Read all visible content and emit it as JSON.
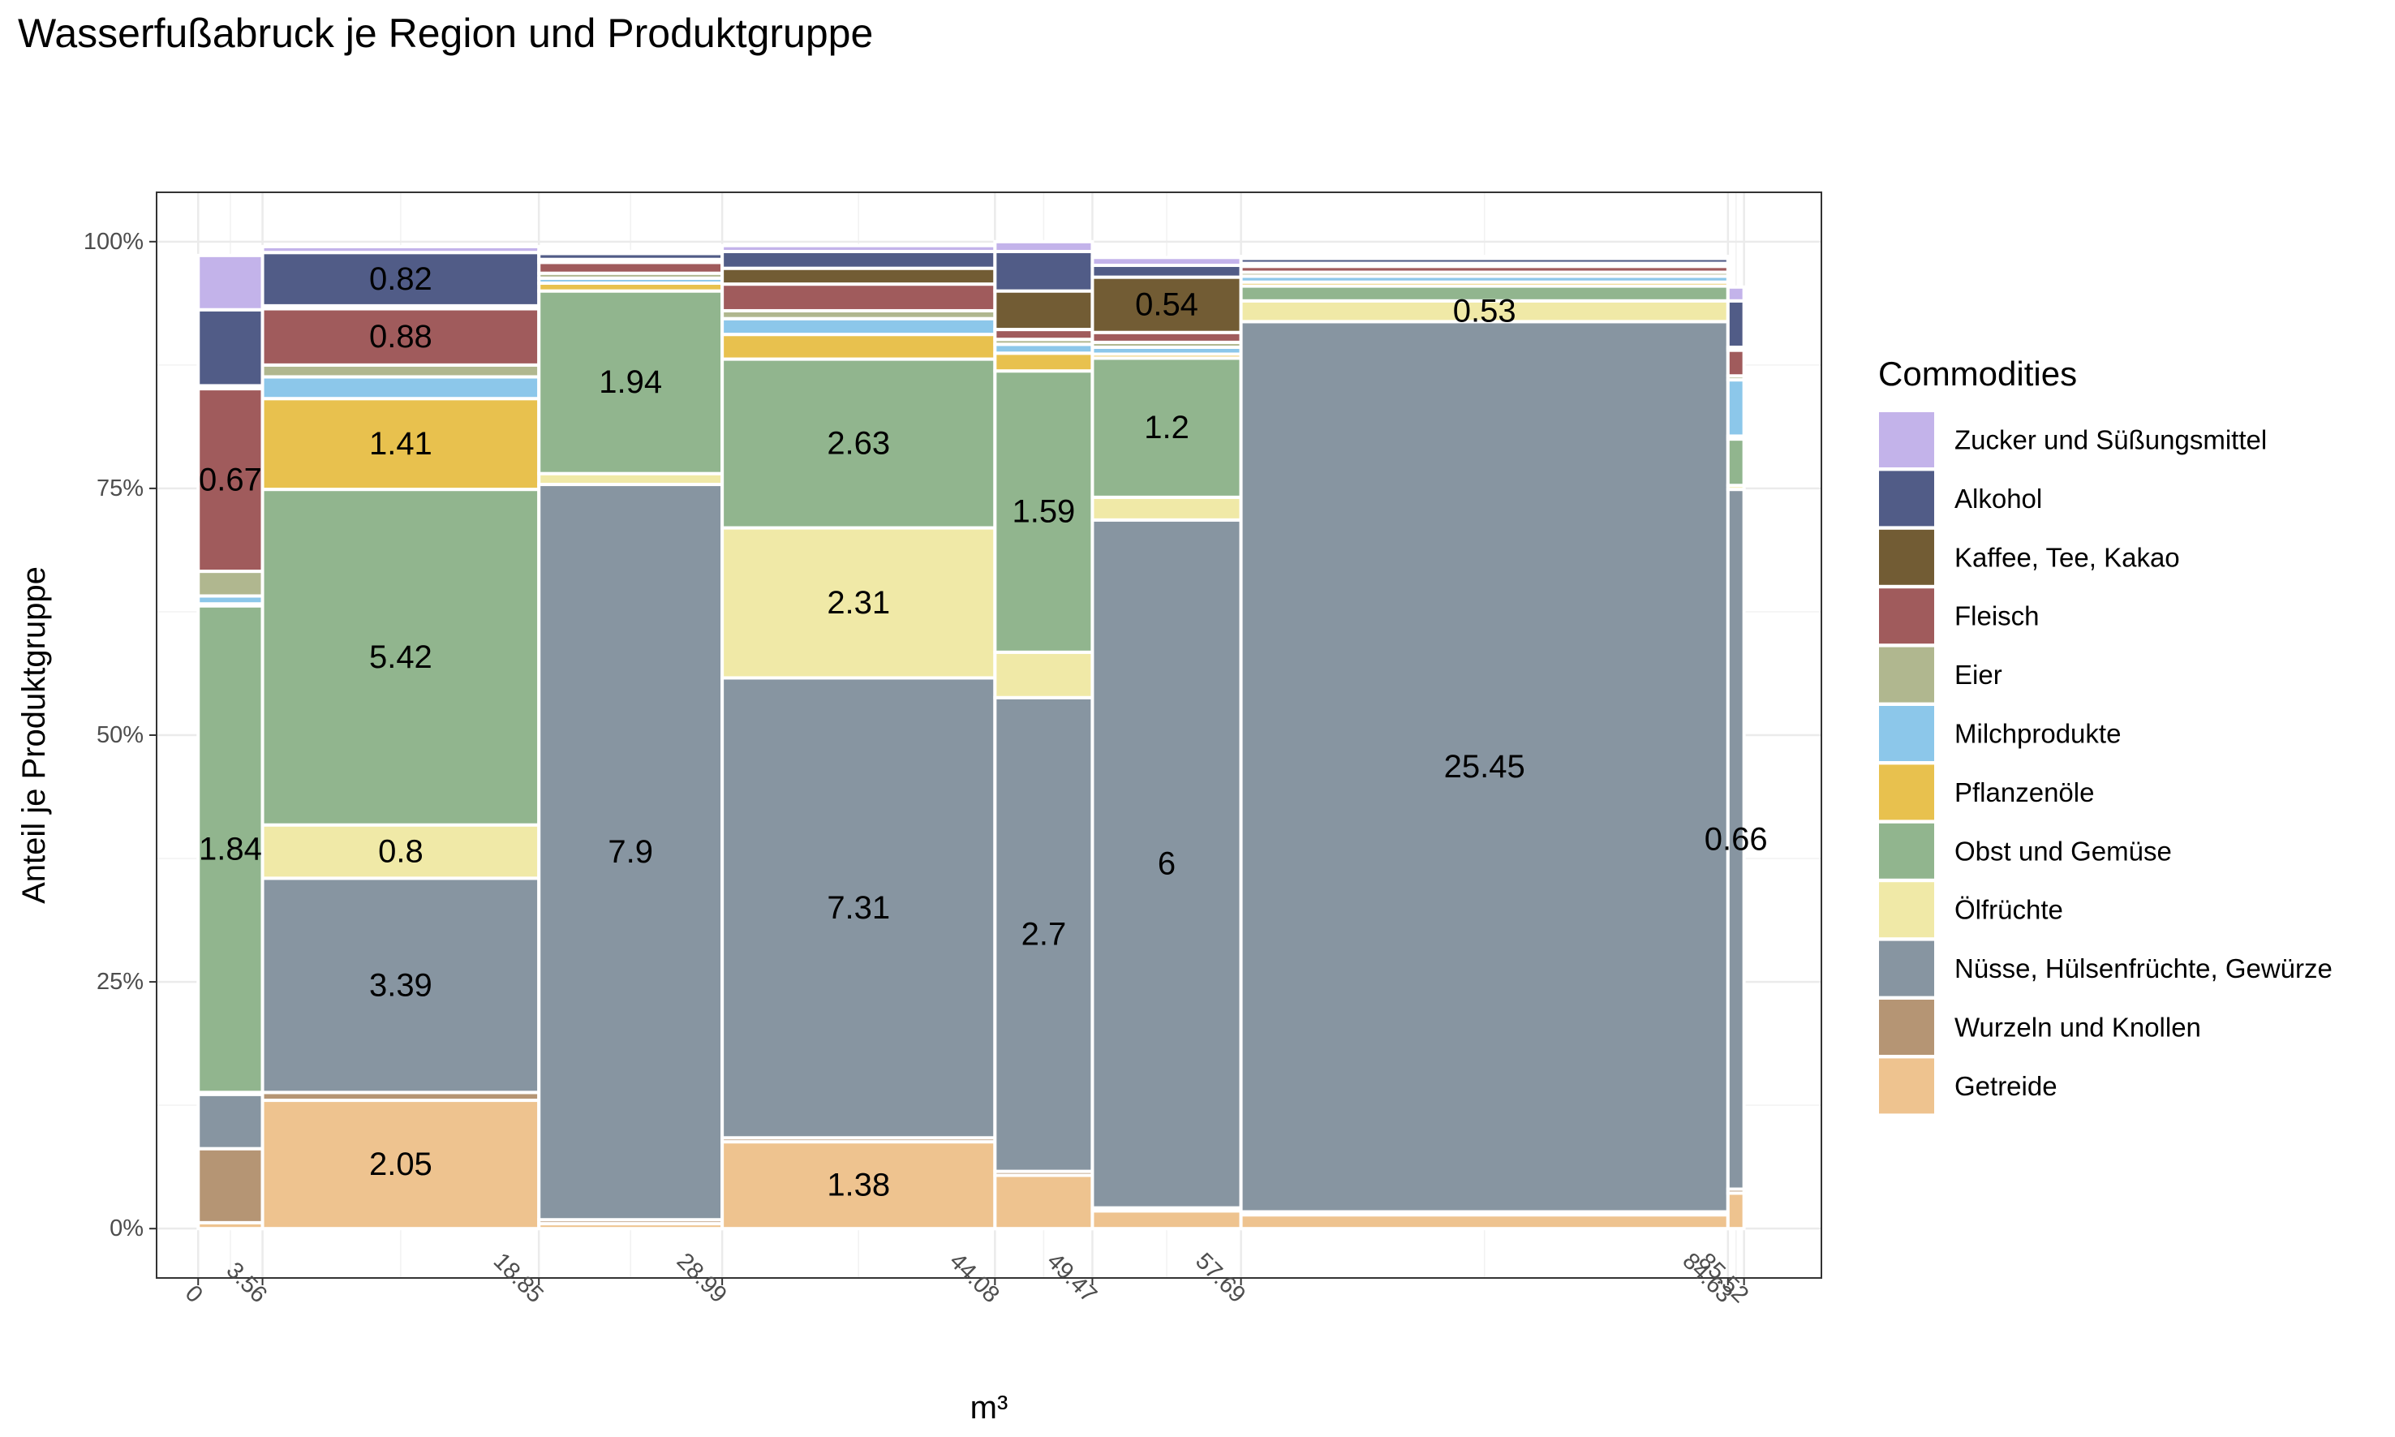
{
  "chart_data": {
    "type": "mosaic",
    "title": "Wasserfußabruck je Region und Produktgruppe",
    "xlabel": "m³",
    "ylabel": "Anteil je Produktgruppe",
    "xlim": [
      -2.3,
      89.8
    ],
    "ylim": [
      -0.05,
      1.05
    ],
    "x_ticks": [
      "0",
      "3.56",
      "18.85",
      "28.99",
      "44.08",
      "49.47",
      "57.69",
      "84.63",
      "85.52"
    ],
    "y_ticks": [
      "0%",
      "25%",
      "50%",
      "75%",
      "100%"
    ],
    "grid": true,
    "legend": {
      "title": "Commodities",
      "position": "right"
    },
    "categories": [
      {
        "name": "Zucker und Süßungsmittel",
        "color": "#c3b3ea"
      },
      {
        "name": "Alkohol",
        "color": "#515c87"
      },
      {
        "name": "Kaffee, Tee, Kakao",
        "color": "#725c34"
      },
      {
        "name": "Fleisch",
        "color": "#a05b5c"
      },
      {
        "name": "Eier",
        "color": "#b0b78f"
      },
      {
        "name": "Milchprodukte",
        "color": "#8cc7ea"
      },
      {
        "name": "Pflanzenöle",
        "color": "#e8c14e"
      },
      {
        "name": "Obst und Gemüse",
        "color": "#91b58e"
      },
      {
        "name": "Ölfrüchte",
        "color": "#f0e9a7"
      },
      {
        "name": "Nüsse, Hülsenfrüchte, Gewürze",
        "color": "#8795a1"
      },
      {
        "name": "Wurzeln und Knollen",
        "color": "#b59574"
      },
      {
        "name": "Getreide",
        "color": "#eec38f"
      }
    ],
    "columns": [
      {
        "x0": 0,
        "x1": 3.56,
        "shares": [
          0.055,
          0.077,
          0.003,
          0.185,
          0.025,
          0.008,
          0.002,
          0.493,
          0.002,
          0.055,
          0.075,
          0.006
        ],
        "labels": [
          {
            "text": "0.67",
            "category": "Fleisch"
          },
          {
            "text": "1.84",
            "category": "Obst und Gemüse"
          }
        ]
      },
      {
        "x0": 3.56,
        "x1": 18.85,
        "shares": [
          0.006,
          0.054,
          0.003,
          0.057,
          0.012,
          0.022,
          0.092,
          0.34,
          0.054,
          0.217,
          0.008,
          0.13
        ],
        "labels": [
          {
            "text": "0.82",
            "category": "Alkohol"
          },
          {
            "text": "0.88",
            "category": "Fleisch"
          },
          {
            "text": "1.41",
            "category": "Pflanzenöle"
          },
          {
            "text": "5.42",
            "category": "Obst und Gemüse"
          },
          {
            "text": "0.8",
            "category": "Ölfrüchte"
          },
          {
            "text": "3.39",
            "category": "Nüsse, Hülsenfrüchte, Gewürze"
          },
          {
            "text": "2.05",
            "category": "Getreide"
          }
        ]
      },
      {
        "x0": 18.85,
        "x1": 28.99,
        "shares": [
          0.002,
          0.006,
          0.003,
          0.011,
          0.005,
          0.005,
          0.008,
          0.185,
          0.011,
          0.745,
          0.004,
          0.005
        ],
        "labels": [
          {
            "text": "1.94",
            "category": "Obst und Gemüse"
          },
          {
            "text": "7.9",
            "category": "Nüsse, Hülsenfrüchte, Gewürze"
          }
        ]
      },
      {
        "x0": 28.99,
        "x1": 44.08,
        "shares": [
          0.006,
          0.017,
          0.016,
          0.027,
          0.008,
          0.016,
          0.025,
          0.171,
          0.152,
          0.466,
          0.004,
          0.088
        ],
        "labels": [
          {
            "text": "2.63",
            "category": "Obst und Gemüse"
          },
          {
            "text": "2.31",
            "category": "Ölfrüchte"
          },
          {
            "text": "7.31",
            "category": "Nüsse, Hülsenfrüchte, Gewürze"
          },
          {
            "text": "1.38",
            "category": "Getreide"
          }
        ]
      },
      {
        "x0": 44.08,
        "x1": 49.47,
        "shares": [
          0.01,
          0.04,
          0.039,
          0.01,
          0.005,
          0.009,
          0.018,
          0.285,
          0.046,
          0.48,
          0.004,
          0.054
        ],
        "labels": [
          {
            "text": "1.59",
            "category": "Obst und Gemüse"
          },
          {
            "text": "2.7",
            "category": "Nüsse, Hülsenfrüchte, Gewürze"
          }
        ]
      },
      {
        "x0": 49.47,
        "x1": 57.69,
        "shares": [
          0.008,
          0.012,
          0.056,
          0.01,
          0.005,
          0.007,
          0.004,
          0.141,
          0.023,
          0.697,
          0.003,
          0.018
        ],
        "labels": [
          {
            "text": "0.54",
            "category": "Kaffee, Tee, Kakao"
          },
          {
            "text": "1.2",
            "category": "Obst und Gemüse"
          },
          {
            "text": "6",
            "category": "Nüsse, Hülsenfrüchte, Gewürze"
          }
        ]
      },
      {
        "x0": 57.69,
        "x1": 84.63,
        "shares": [
          0.002,
          0.005,
          0.003,
          0.006,
          0.004,
          0.006,
          0.004,
          0.015,
          0.021,
          0.902,
          0.003,
          0.014
        ],
        "labels": [
          {
            "text": "0.53",
            "category": "Ölfrüchte"
          },
          {
            "text": "25.45",
            "category": "Nüsse, Hülsenfrüchte, Gewürze"
          }
        ]
      },
      {
        "x0": 84.63,
        "x1": 85.52,
        "shares": [
          0.014,
          0.047,
          0.003,
          0.026,
          0.004,
          0.057,
          0.003,
          0.047,
          0.004,
          0.709,
          0.004,
          0.036
        ],
        "labels": [
          {
            "text": "0.66",
            "category": "Nüsse, Hülsenfrüchte, Gewürze"
          }
        ]
      }
    ]
  }
}
